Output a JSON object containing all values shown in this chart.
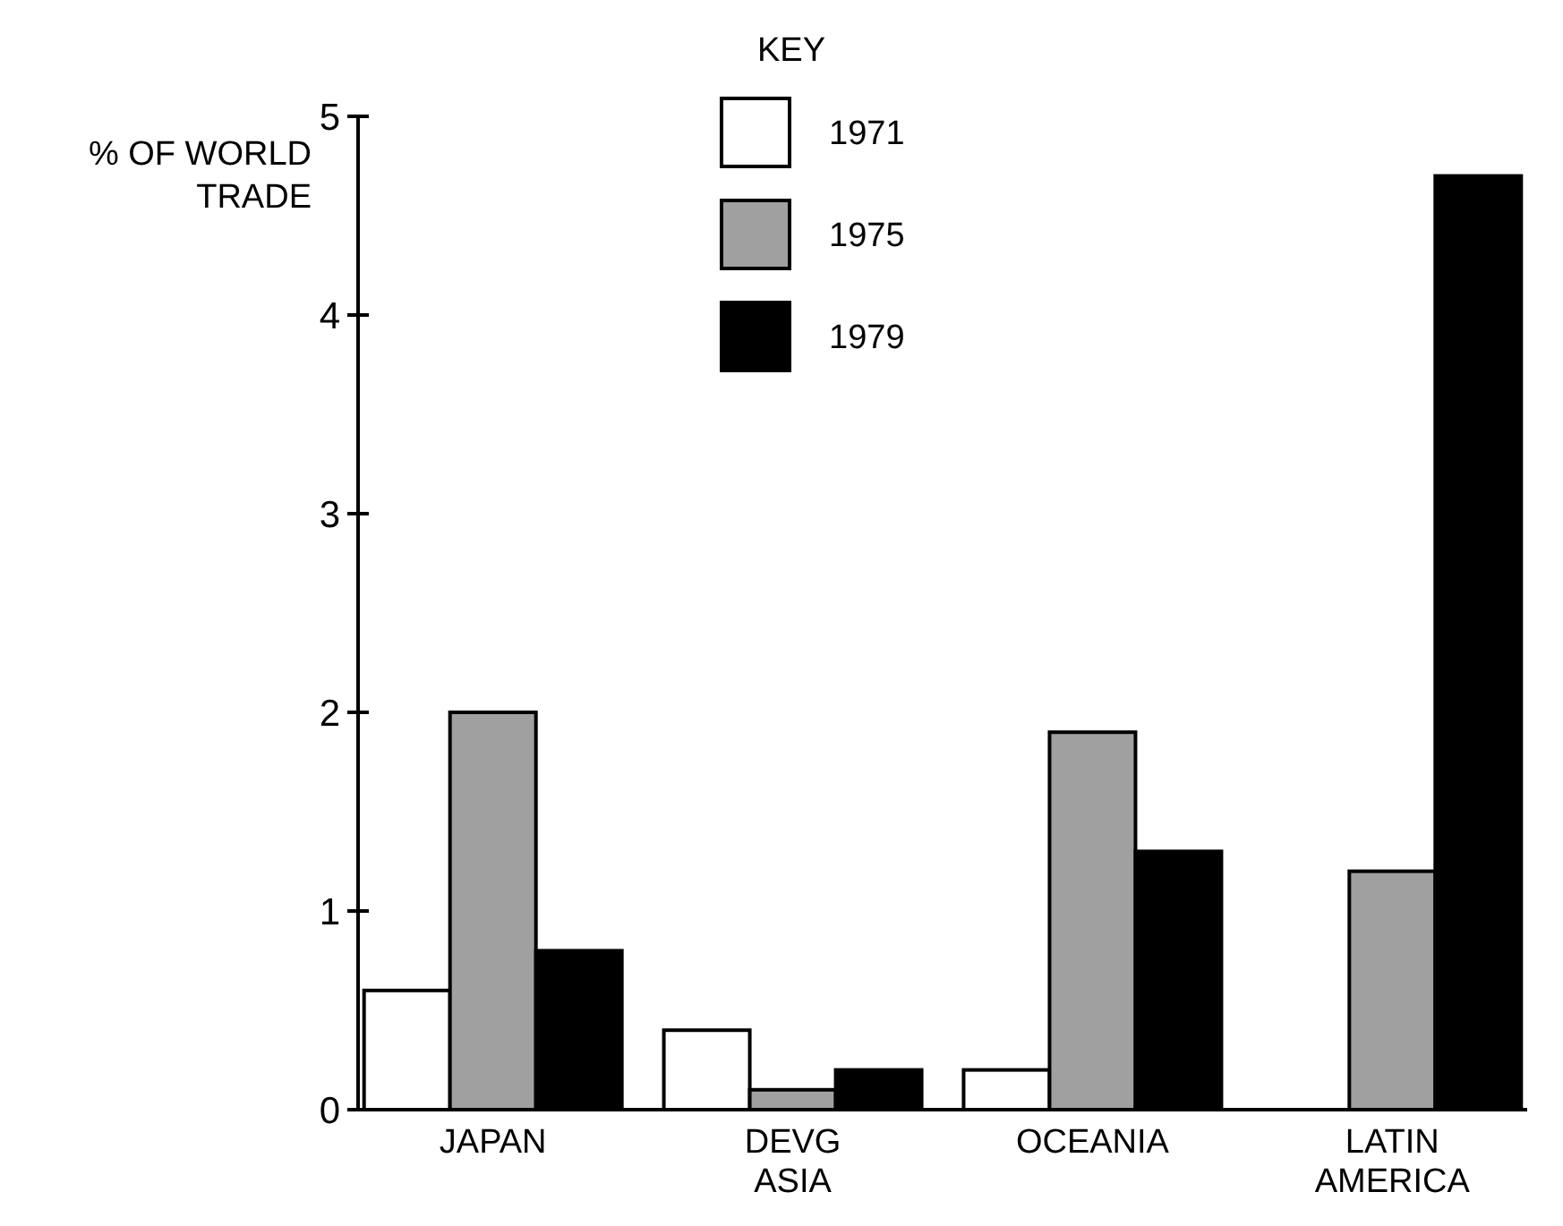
{
  "chart_data": {
    "type": "bar",
    "ylabel": "% OF WORLD TRADE",
    "legend_title": "KEY",
    "legend": "top",
    "categories": [
      "JAPAN",
      "DEVG ASIA",
      "OCEANIA",
      "LATIN AMERICA"
    ],
    "series": [
      {
        "name": "1971",
        "color": "#ffffff",
        "values": [
          0.6,
          0.4,
          0.2,
          null
        ]
      },
      {
        "name": "1975",
        "color": "#a0a0a0",
        "values": [
          2.0,
          0.1,
          1.9,
          1.2
        ]
      },
      {
        "name": "1979",
        "color": "#000000",
        "values": [
          0.8,
          0.2,
          1.3,
          4.7
        ]
      }
    ],
    "ylim": [
      0,
      5
    ],
    "yticks": [
      0,
      1,
      2,
      3,
      4,
      5
    ],
    "grid": false
  }
}
